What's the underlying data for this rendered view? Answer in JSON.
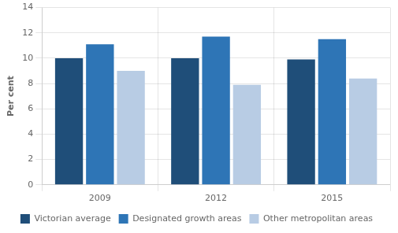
{
  "chart_data": {
    "type": "bar",
    "ylabel": "Per cent",
    "categories": [
      "2009",
      "2012",
      "2015"
    ],
    "series": [
      {
        "name": "Victorian average",
        "color": "#1f4e79",
        "values": [
          10.0,
          10.0,
          9.9
        ]
      },
      {
        "name": "Designated growth areas",
        "color": "#2e75b6",
        "values": [
          11.1,
          11.7,
          11.5
        ]
      },
      {
        "name": "Other metropolitan areas",
        "color": "#b8cce4",
        "values": [
          9.0,
          7.9,
          8.4
        ]
      }
    ],
    "ylim": [
      0,
      14
    ],
    "yticks": [
      0,
      2,
      4,
      6,
      8,
      10,
      12,
      14
    ],
    "grid": true,
    "legend": "bottom"
  }
}
